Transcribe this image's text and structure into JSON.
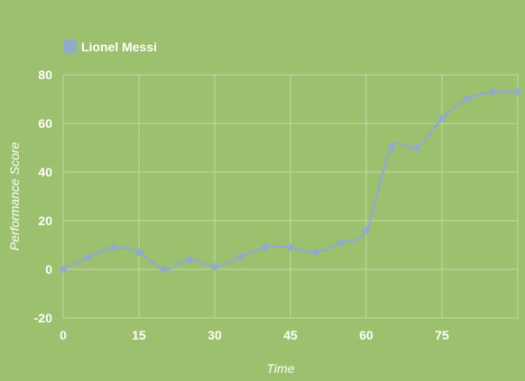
{
  "chart_data": {
    "type": "line",
    "title": "",
    "xlabel": "Time",
    "ylabel": "Performance Score",
    "xlim": [
      0,
      90
    ],
    "ylim": [
      -20,
      80
    ],
    "x_ticks": [
      "0",
      "15",
      "30",
      "45",
      "60",
      "75"
    ],
    "y_ticks": [
      "80",
      "60",
      "40",
      "20",
      "0",
      "-20"
    ],
    "x_tick_values": [
      0,
      15,
      30,
      45,
      60,
      75
    ],
    "y_tick_values": [
      80,
      60,
      40,
      20,
      0,
      -20
    ],
    "grid": true,
    "legend_position": "top-left",
    "series": [
      {
        "name": "Lionel Messi",
        "color": "#91acc7",
        "x": [
          0,
          5,
          10,
          15,
          20,
          25,
          30,
          35,
          40,
          45,
          50,
          55,
          60,
          65,
          70,
          75,
          80,
          85,
          90
        ],
        "y": [
          0,
          5,
          9,
          7,
          0,
          4,
          1,
          5,
          9,
          9,
          7,
          11,
          16,
          50,
          50,
          62,
          70,
          73,
          73
        ]
      }
    ]
  }
}
